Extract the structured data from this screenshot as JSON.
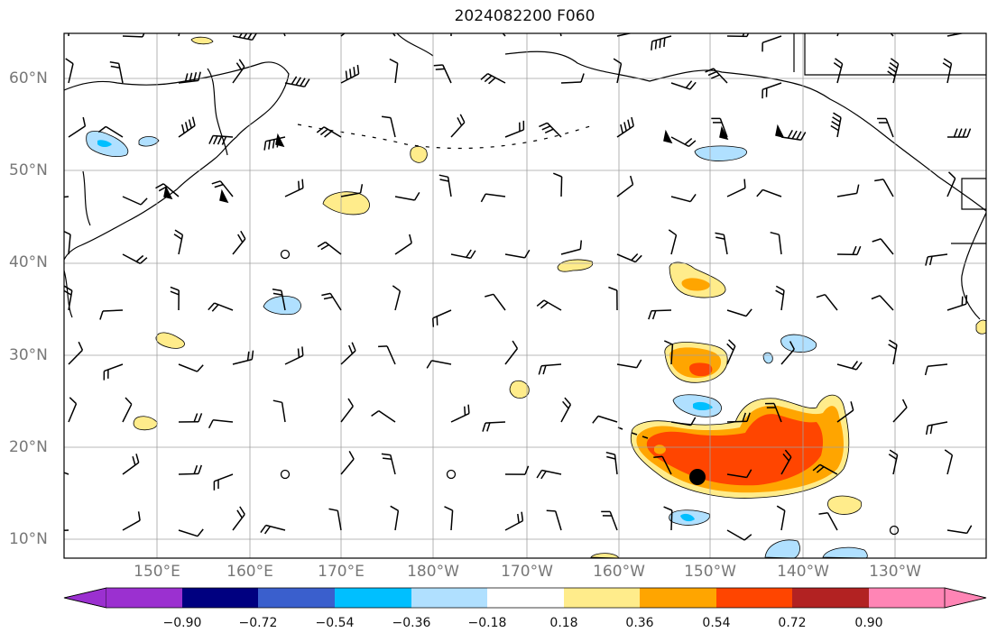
{
  "title": "2024082200 F060",
  "lat_labels": [
    "60°N",
    "50°N",
    "40°N",
    "30°N",
    "20°N",
    "10°N"
  ],
  "lon_labels": [
    "150°E",
    "160°E",
    "170°E",
    "180°W",
    "170°W",
    "160°W",
    "150°W",
    "140°W",
    "130°W"
  ],
  "colorbar": {
    "ticks": [
      "−0.90",
      "−0.72",
      "−0.54",
      "−0.36",
      "−0.18",
      "0.18",
      "0.36",
      "0.54",
      "0.72",
      "0.90"
    ],
    "colors": [
      "#9b30d0",
      "#000080",
      "#3a5fcd",
      "#00bfff",
      "#b0e0ff",
      "#ffffff",
      "#ffec8b",
      "#ffa500",
      "#ff4500",
      "#b22222",
      "#ff85b5"
    ]
  },
  "colors": {
    "land_outline": "#000000",
    "grid": "#a0a0a0",
    "light_yellow": "#ffec8b",
    "orange": "#ffa500",
    "red_orange": "#ff4500",
    "light_blue": "#b0e0ff",
    "deep_sky_blue": "#00bfff"
  }
}
